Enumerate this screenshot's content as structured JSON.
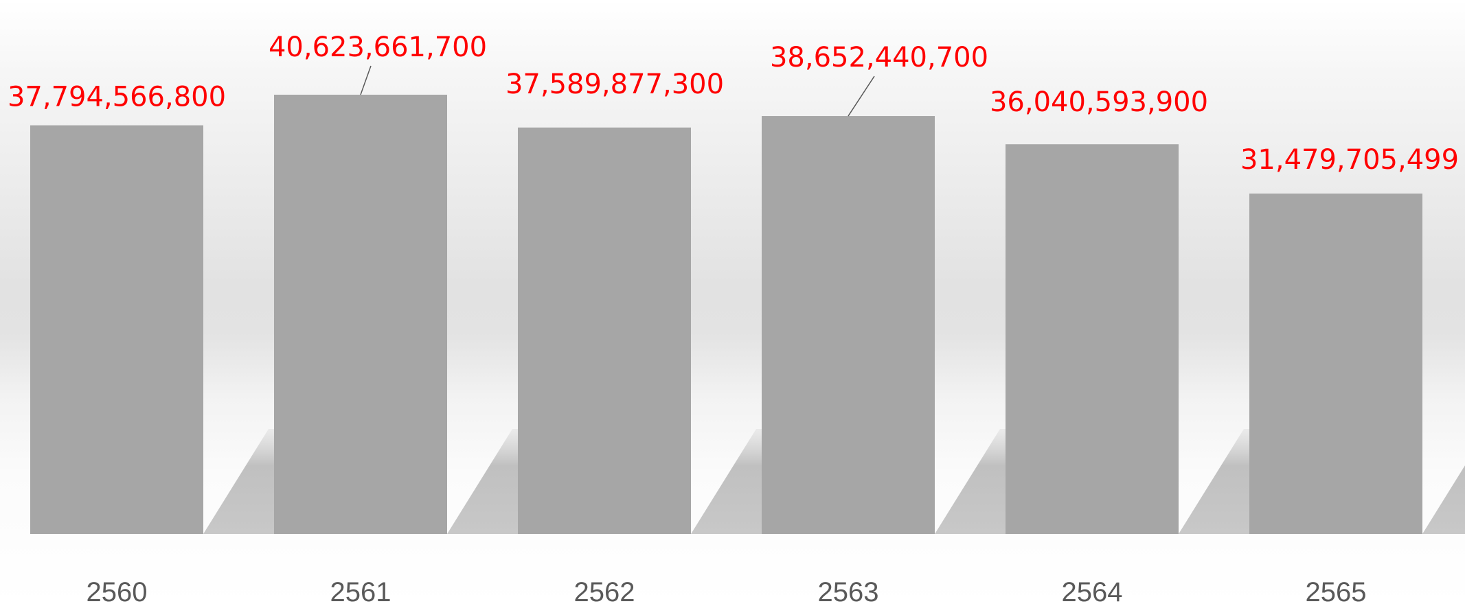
{
  "chart_data": {
    "type": "bar",
    "categories": [
      "2560",
      "2561",
      "2562",
      "2563",
      "2564",
      "2565"
    ],
    "values": [
      37794566800,
      40623661700,
      37589877300,
      38652440700,
      36040593900,
      31479705499
    ],
    "value_labels": [
      "37,794,566,800",
      "40,623,661,700",
      "37,589,877,300",
      "38,652,440,700",
      "36,040,593,900",
      "31,479,705,499"
    ],
    "title": "",
    "xlabel": "",
    "ylabel": "",
    "ylim": [
      0,
      45000000000
    ],
    "grid": false,
    "legend": "none",
    "colors": {
      "bar": "#a6a6a6",
      "shadow": "#bdbdbd",
      "value_label": "#ff0000",
      "category_label": "#595959",
      "leader_line": "#595959"
    }
  }
}
